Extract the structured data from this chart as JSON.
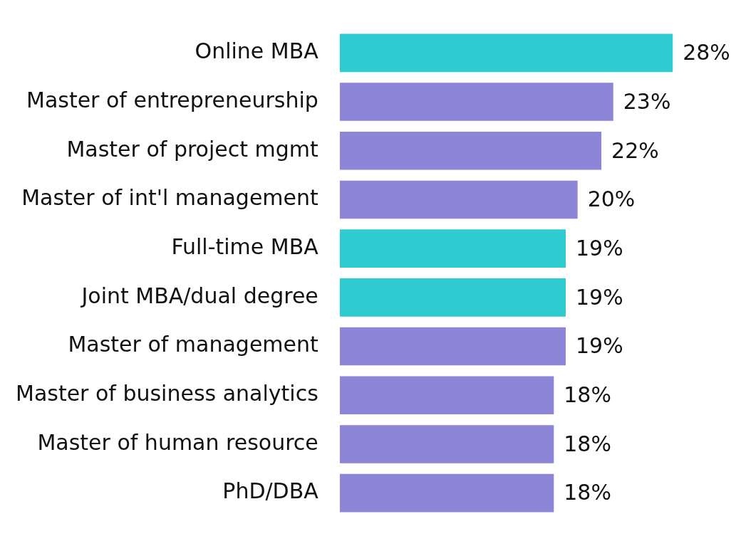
{
  "chart_data": {
    "type": "bar",
    "orientation": "horizontal",
    "categories": [
      "Online MBA",
      "Master of entrepreneurship",
      "Master of project mgmt",
      "Master of int'l management",
      "Full-time MBA",
      "Joint MBA/dual degree",
      "Master of management",
      "Master of business analytics",
      "Master of human resource",
      "PhD/DBA"
    ],
    "values": [
      28,
      23,
      22,
      20,
      19,
      19,
      19,
      18,
      18,
      18
    ],
    "colors": [
      "#2ecbd0",
      "#8c85d8",
      "#8c85d8",
      "#8c85d8",
      "#2ecbd0",
      "#2ecbd0",
      "#8c85d8",
      "#8c85d8",
      "#8c85d8",
      "#8c85d8"
    ],
    "value_labels": [
      "28%",
      "23%",
      "22%",
      "20%",
      "19%",
      "19%",
      "19%",
      "18%",
      "18%",
      "18%"
    ],
    "legend": false
  }
}
